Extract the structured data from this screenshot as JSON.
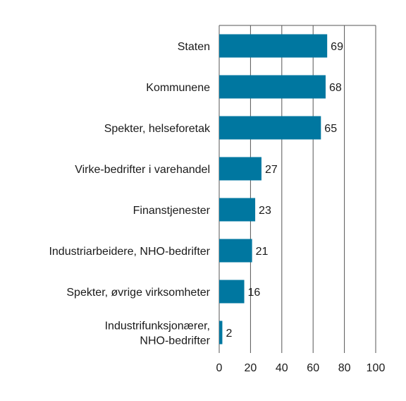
{
  "chart_data": {
    "type": "bar",
    "orientation": "horizontal",
    "categories": [
      [
        "Staten"
      ],
      [
        "Kommunene"
      ],
      [
        "Spekter, helseforetak"
      ],
      [
        "Virke-bedrifter i varehandel"
      ],
      [
        "Finanstjenester"
      ],
      [
        "Industriarbeidere, NHO-bedrifter"
      ],
      [
        "Spekter, øvrige virksomheter"
      ],
      [
        "Industrifunksjonærer,",
        "NHO-bedrifter"
      ]
    ],
    "values": [
      69,
      68,
      65,
      27,
      23,
      21,
      16,
      2
    ],
    "xlim": [
      0,
      100
    ],
    "xticks": [
      0,
      20,
      40,
      60,
      80,
      100
    ],
    "grid": true,
    "bar_color": "#0077a0"
  }
}
